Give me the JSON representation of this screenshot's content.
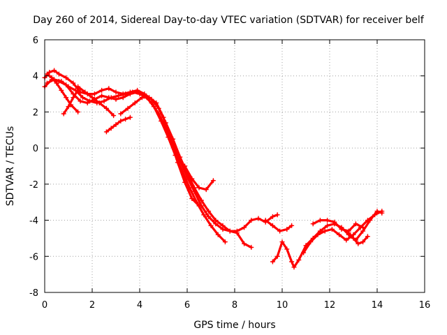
{
  "chart_data": {
    "type": "scatter",
    "title": "Day 260 of 2014, Sidereal Day-to-day VTEC variation (SDTVAR) for receiver belf",
    "xlabel": "GPS time / hours",
    "ylabel": "SDTVAR / TECUs",
    "xlim": [
      0,
      16
    ],
    "ylim": [
      -8,
      6
    ],
    "xticks": [
      "0",
      "2",
      "4",
      "6",
      "8",
      "10",
      "12",
      "14",
      "16"
    ],
    "yticks": [
      "-8",
      "-6",
      "-4",
      "-2",
      "0",
      "2",
      "4",
      "6"
    ],
    "grid": true,
    "legend": "none",
    "color": "#ff0000",
    "series": [
      {
        "x": [
          0.0,
          0.2,
          0.4,
          0.6,
          0.9,
          1.2,
          1.5,
          1.8,
          2.1,
          2.4,
          2.7,
          3.0,
          3.3,
          3.6,
          3.9,
          4.2,
          4.5,
          4.8,
          5.1,
          5.4,
          5.7,
          6.0,
          6.3,
          6.6,
          6.9,
          7.2,
          7.5,
          7.8,
          8.1,
          8.4,
          8.7,
          9.0,
          9.3,
          9.6,
          9.8
        ],
        "y": [
          3.9,
          4.2,
          4.3,
          4.1,
          3.9,
          3.6,
          3.1,
          3.0,
          3.0,
          3.2,
          3.3,
          3.1,
          3.0,
          3.1,
          3.2,
          3.0,
          2.7,
          2.2,
          1.4,
          0.5,
          -0.5,
          -1.4,
          -2.2,
          -2.9,
          -3.5,
          -4.0,
          -4.3,
          -4.6,
          -4.6,
          -4.4,
          -4.0,
          -3.9,
          -4.1,
          -3.8,
          -3.7
        ]
      },
      {
        "x": [
          0.0,
          0.3,
          0.6,
          0.9,
          1.2,
          1.5,
          1.8,
          2.1,
          2.4,
          2.7,
          3.0,
          3.3,
          3.6,
          3.9,
          4.2,
          4.5,
          4.8,
          5.1,
          5.4,
          5.7,
          6.0,
          6.3,
          6.6,
          6.9,
          7.2,
          7.5,
          7.8,
          8.1,
          8.4,
          8.7
        ],
        "y": [
          3.4,
          3.8,
          3.7,
          3.5,
          3.0,
          2.6,
          2.5,
          2.7,
          2.9,
          2.8,
          2.7,
          2.8,
          3.0,
          3.1,
          2.9,
          2.5,
          1.9,
          1.1,
          0.2,
          -0.7,
          -1.6,
          -2.4,
          -3.2,
          -3.8,
          -4.2,
          -4.5,
          -4.6,
          -4.7,
          -5.3,
          -5.5
        ]
      },
      {
        "x": [
          0.1,
          0.4,
          0.7,
          1.0,
          1.3,
          1.6,
          1.9,
          2.2,
          2.5,
          2.8,
          3.1,
          3.4,
          3.7,
          4.0,
          4.3,
          4.6,
          4.9,
          5.2,
          5.5,
          5.8,
          6.1,
          6.4,
          6.7,
          7.0,
          7.3,
          7.6
        ],
        "y": [
          3.6,
          3.8,
          3.7,
          3.4,
          3.2,
          2.8,
          2.6,
          2.5,
          2.6,
          2.8,
          2.9,
          3.0,
          3.1,
          3.0,
          2.8,
          2.3,
          1.5,
          0.6,
          -0.4,
          -1.3,
          -2.2,
          -3.0,
          -3.7,
          -4.3,
          -4.8,
          -5.2
        ]
      },
      {
        "x": [
          3.2,
          3.5,
          3.8,
          4.1,
          4.4,
          4.7,
          5.0,
          5.3,
          5.6,
          5.9,
          6.2,
          6.5
        ],
        "y": [
          1.9,
          2.2,
          2.5,
          2.8,
          2.8,
          2.5,
          1.7,
          0.5,
          -0.8,
          -1.9,
          -2.8,
          -3.2
        ]
      },
      {
        "x": [
          5.6,
          5.9,
          6.2,
          6.5,
          6.8,
          7.1
        ],
        "y": [
          -0.6,
          -1.0,
          -1.7,
          -2.2,
          -2.3,
          -1.8
        ]
      },
      {
        "x": [
          0.1,
          0.3,
          0.5,
          0.7,
          0.9,
          1.1,
          1.4
        ],
        "y": [
          4.1,
          3.9,
          3.6,
          3.2,
          2.8,
          2.4,
          2.0
        ]
      },
      {
        "x": [
          0.8,
          1.0,
          1.2,
          1.4
        ],
        "y": [
          1.9,
          2.3,
          2.8,
          3.2
        ]
      },
      {
        "x": [
          1.4,
          1.7,
          2.0,
          2.3,
          2.6,
          2.9
        ],
        "y": [
          3.4,
          3.1,
          2.8,
          2.5,
          2.2,
          1.8
        ]
      },
      {
        "x": [
          2.6,
          2.8,
          3.0,
          3.2,
          3.4,
          3.6
        ],
        "y": [
          0.9,
          1.1,
          1.3,
          1.5,
          1.6,
          1.7
        ]
      },
      {
        "x": [
          9.6,
          9.8,
          10.0,
          10.2,
          10.4,
          10.5,
          10.7,
          11.0,
          11.3,
          11.6,
          11.9,
          12.2,
          12.5,
          12.8,
          13.1,
          13.4,
          13.7,
          14.0,
          14.2
        ],
        "y": [
          -6.3,
          -6.0,
          -5.2,
          -5.6,
          -6.3,
          -6.6,
          -6.2,
          -5.4,
          -5.0,
          -4.6,
          -4.3,
          -4.2,
          -4.4,
          -4.8,
          -5.1,
          -4.6,
          -4.0,
          -3.5,
          -3.6
        ]
      },
      {
        "x": [
          9.3,
          9.6,
          9.9,
          10.2,
          10.4
        ],
        "y": [
          -4.0,
          -4.3,
          -4.6,
          -4.5,
          -4.3
        ]
      },
      {
        "x": [
          10.9,
          11.2,
          11.5,
          11.8,
          12.1,
          12.4,
          12.7,
          13.0,
          13.3,
          13.6,
          13.9,
          14.2
        ],
        "y": [
          -5.8,
          -5.2,
          -4.8,
          -4.6,
          -4.5,
          -4.8,
          -5.1,
          -4.8,
          -4.4,
          -4.0,
          -3.7,
          -3.5
        ]
      },
      {
        "x": [
          11.3,
          11.6,
          11.9,
          12.2,
          12.5,
          12.8,
          13.1,
          13.4
        ],
        "y": [
          -4.2,
          -4.0,
          -4.0,
          -4.1,
          -4.5,
          -4.6,
          -4.2,
          -4.4
        ]
      },
      {
        "x": [
          12.8,
          13.0,
          13.2,
          13.4,
          13.6
        ],
        "y": [
          -4.7,
          -5.0,
          -5.3,
          -5.2,
          -4.9
        ]
      }
    ]
  }
}
